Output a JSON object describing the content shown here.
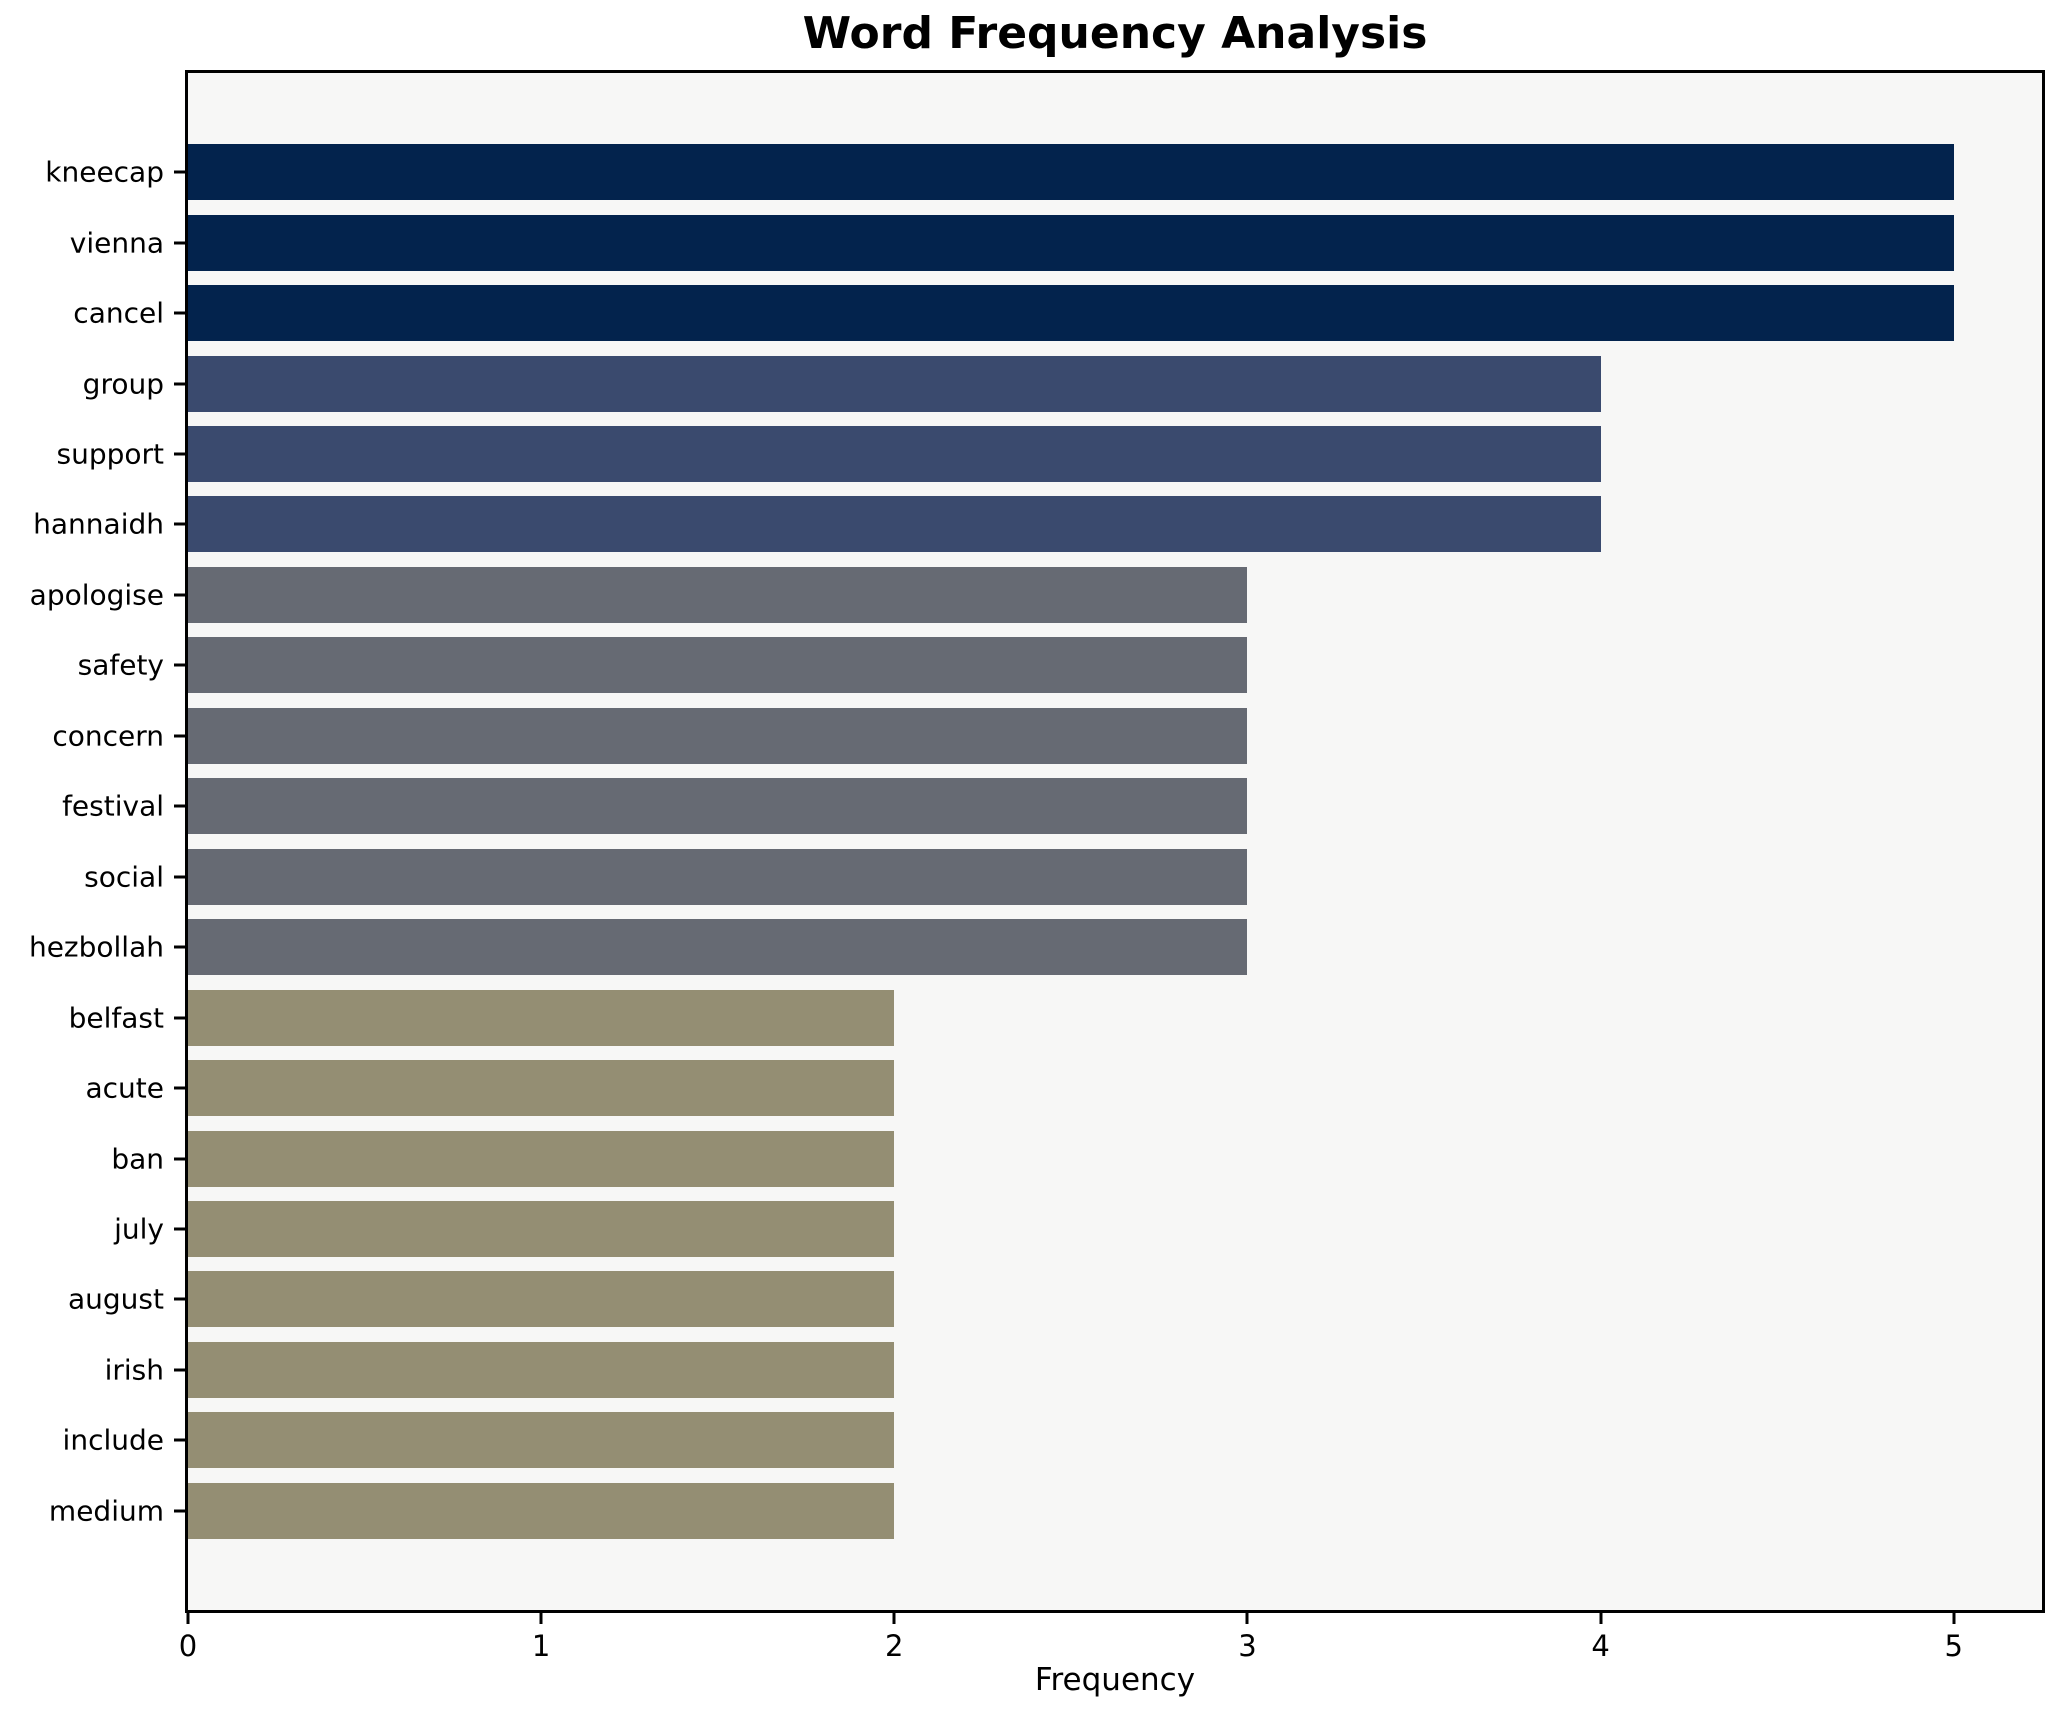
{
  "chart_data": {
    "type": "bar",
    "orientation": "horizontal",
    "title": "Word Frequency Analysis",
    "xlabel": "Frequency",
    "ylabel": "",
    "categories": [
      "kneecap",
      "vienna",
      "cancel",
      "group",
      "support",
      "hannaidh",
      "apologise",
      "safety",
      "concern",
      "festival",
      "social",
      "hezbollah",
      "belfast",
      "acute",
      "ban",
      "july",
      "august",
      "irish",
      "include",
      "medium"
    ],
    "values": [
      5,
      5,
      5,
      4,
      4,
      4,
      3,
      3,
      3,
      3,
      3,
      3,
      2,
      2,
      2,
      2,
      2,
      2,
      2,
      2
    ],
    "x_ticks": [
      0,
      1,
      2,
      3,
      4,
      5
    ],
    "xlim": [
      0,
      5.25
    ],
    "grid": false,
    "legend": false,
    "value_colors": {
      "5": "#03234d",
      "4": "#3a4a6e",
      "3": "#666a73",
      "2": "#948e73"
    },
    "plot_background": "#f7f7f6",
    "figure_background": "#ffffff",
    "spine_color": "#000000"
  }
}
